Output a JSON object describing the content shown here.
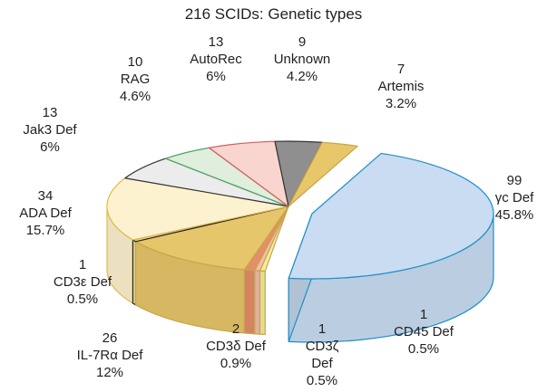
{
  "chart_data": {
    "type": "pie",
    "style": "3d-exploded-slice",
    "title": "216 SCIDs: Genetic types",
    "total": 216,
    "slices": [
      {
        "key": "gc",
        "count": "99",
        "name": "γc Def",
        "pct": "45.8%",
        "value": 99,
        "color": "#c9dcf1",
        "stroke": "#1f8fc9",
        "exploded": true
      },
      {
        "key": "cd45",
        "count": "1",
        "name": "CD45 Def",
        "pct": "0.5%",
        "value": 1,
        "color": "#f3ee9c",
        "stroke": "#c8a54a"
      },
      {
        "key": "cd3z",
        "count": "1",
        "name": "CD3ζ Def",
        "pct": "0.5%",
        "value": 1,
        "color": "#f2bfae",
        "stroke": "#c8a54a"
      },
      {
        "key": "cd3d",
        "count": "2",
        "name": "CD3δ Def",
        "pct": "0.9%",
        "value": 2,
        "color": "#e58e6a",
        "stroke": "#c8a54a"
      },
      {
        "key": "il7",
        "count": "26",
        "name": "IL-7Rα Def",
        "pct": "12%",
        "value": 26,
        "color": "#e6c66a",
        "stroke": "#c8a54a"
      },
      {
        "key": "cd3e",
        "count": "1",
        "name": "CD3ε Def",
        "pct": "0.5%",
        "value": 1,
        "color": "#f5e6a4",
        "stroke": "#222222"
      },
      {
        "key": "ada",
        "count": "34",
        "name": "ADA Def",
        "pct": "15.7%",
        "value": 34,
        "color": "#fdf2cf",
        "stroke": "#e2b94d"
      },
      {
        "key": "jak3",
        "count": "13",
        "name": "Jak3 Def",
        "pct": "6%",
        "value": 13,
        "color": "#ececec",
        "stroke": "#333333"
      },
      {
        "key": "rag",
        "count": "10",
        "name": "RAG",
        "pct": "4.6%",
        "value": 10,
        "color": "#dfeedd",
        "stroke": "#4aa560"
      },
      {
        "key": "autorec",
        "count": "13",
        "name": "AutoRec",
        "pct": "6%",
        "value": 13,
        "color": "#f8d5cf",
        "stroke": "#d75a5a"
      },
      {
        "key": "unknown",
        "count": "9",
        "name": "Unknown",
        "pct": "4.2%",
        "value": 9,
        "color": "#8f8f8f",
        "stroke": "#333333"
      },
      {
        "key": "artemis",
        "count": "7",
        "name": "Artemis",
        "pct": "3.2%",
        "value": 7,
        "color": "#e7c76a",
        "stroke": "#c8a54a"
      }
    ]
  }
}
